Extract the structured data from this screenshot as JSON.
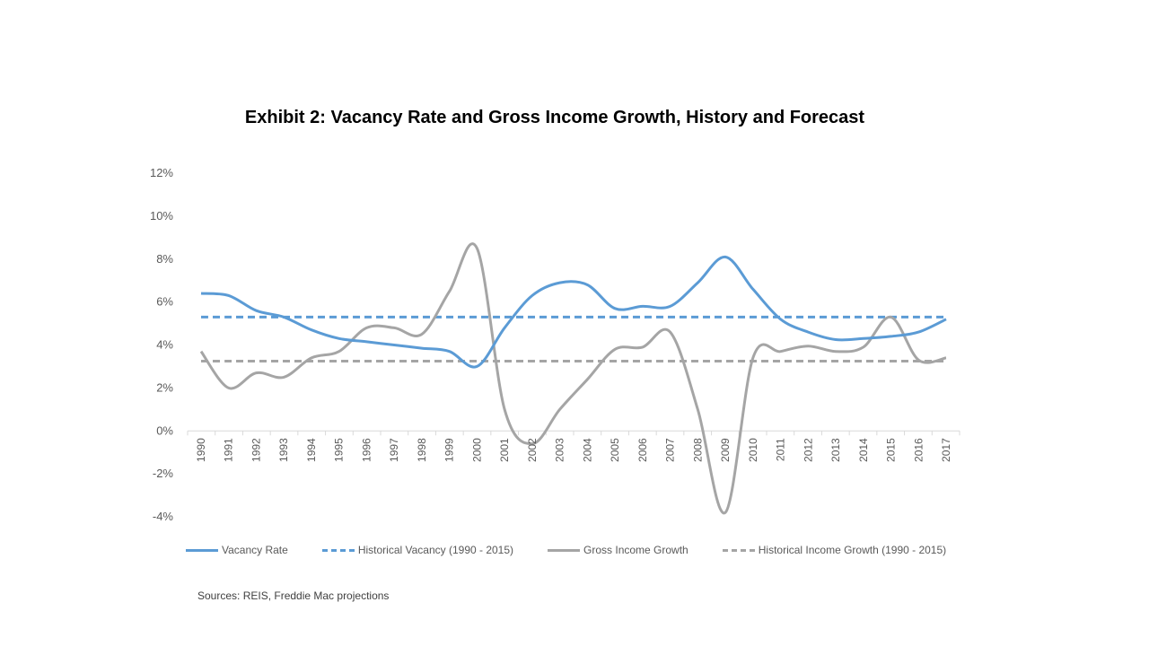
{
  "chart_data": {
    "type": "line",
    "title": "Exhibit 2: Vacancy Rate and Gross Income Growth, History and Forecast",
    "categories": [
      "1990",
      "1991",
      "1992",
      "1993",
      "1994",
      "1995",
      "1996",
      "1997",
      "1998",
      "1999",
      "2000",
      "2001",
      "2002",
      "2003",
      "2004",
      "2005",
      "2006",
      "2007",
      "2008",
      "2009",
      "2010",
      "2011",
      "2012",
      "2013",
      "2014",
      "2015",
      "2016",
      "2017"
    ],
    "yticks": [
      "12%",
      "10%",
      "8%",
      "6%",
      "4%",
      "2%",
      "0%",
      "-2%",
      "-4%"
    ],
    "ylim": [
      -4,
      12
    ],
    "series": [
      {
        "name": "Vacancy Rate",
        "color": "#5B9BD5",
        "dashed": false,
        "values": [
          6.4,
          6.3,
          5.6,
          5.3,
          4.7,
          4.3,
          4.15,
          4.0,
          3.85,
          3.7,
          3.0,
          4.8,
          6.3,
          6.9,
          6.8,
          5.7,
          5.8,
          5.8,
          6.9,
          8.1,
          6.6,
          5.2,
          4.6,
          4.25,
          4.3,
          4.4,
          4.6,
          5.2
        ]
      },
      {
        "name": "Historical Vacancy (1990 - 2015)",
        "color": "#5B9BD5",
        "dashed": true,
        "values": [
          5.3,
          5.3,
          5.3,
          5.3,
          5.3,
          5.3,
          5.3,
          5.3,
          5.3,
          5.3,
          5.3,
          5.3,
          5.3,
          5.3,
          5.3,
          5.3,
          5.3,
          5.3,
          5.3,
          5.3,
          5.3,
          5.3,
          5.3,
          5.3,
          5.3,
          5.3,
          5.3,
          5.3
        ]
      },
      {
        "name": "Gross Income Growth",
        "color": "#A5A5A5",
        "dashed": false,
        "values": [
          3.7,
          2.0,
          2.7,
          2.5,
          3.4,
          3.7,
          4.8,
          4.8,
          4.5,
          6.5,
          8.5,
          1.0,
          -0.6,
          1.0,
          2.4,
          3.8,
          3.9,
          4.6,
          1.0,
          -3.8,
          3.4,
          3.7,
          3.95,
          3.7,
          3.9,
          5.3,
          3.3,
          3.4
        ]
      },
      {
        "name": "Historical Income Growth (1990 - 2015)",
        "color": "#A5A5A5",
        "dashed": true,
        "values": [
          3.25,
          3.25,
          3.25,
          3.25,
          3.25,
          3.25,
          3.25,
          3.25,
          3.25,
          3.25,
          3.25,
          3.25,
          3.25,
          3.25,
          3.25,
          3.25,
          3.25,
          3.25,
          3.25,
          3.25,
          3.25,
          3.25,
          3.25,
          3.25,
          3.25,
          3.25,
          3.25,
          3.25
        ]
      }
    ]
  },
  "source": "Sources: REIS, Freddie Mac projections"
}
